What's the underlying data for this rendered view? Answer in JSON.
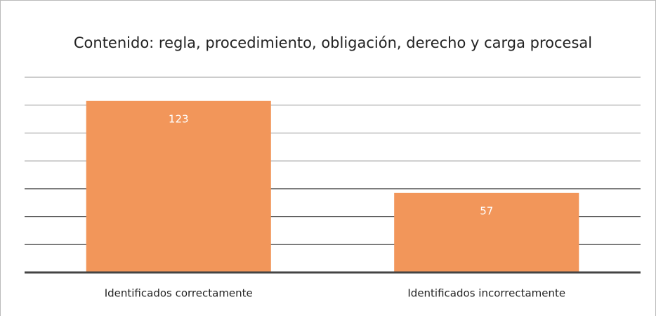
{
  "chart_data": {
    "type": "bar",
    "title": "Contenido: regla, procedimiento, obligación, derecho y carga procesal",
    "categories": [
      "Identificados correctamente",
      "Identificados incorrectamente"
    ],
    "values": [
      123,
      57
    ],
    "color": "#f2965a",
    "ylim": [
      0,
      140
    ],
    "yticks": [
      0,
      20,
      40,
      60,
      80,
      100,
      120,
      140
    ],
    "grid": true
  }
}
